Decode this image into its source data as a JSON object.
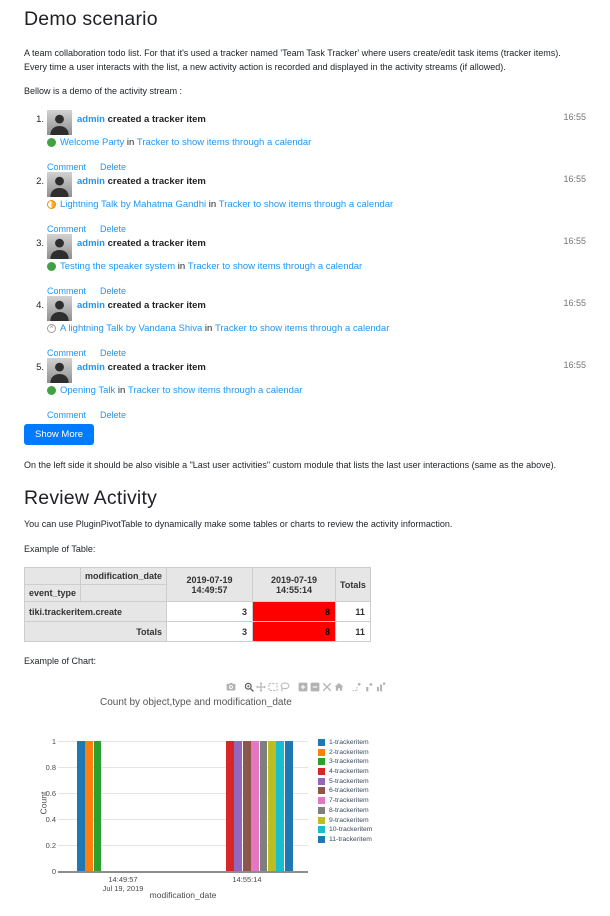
{
  "page": {
    "heading1": "Demo scenario",
    "intro": "A team collaboration todo list. For that it's used a tracker named 'Team Task Tracker' where users create/edit task items (tracker items). Every time a user interacts with the list, a new activity action is recorded and displayed in the activity streams (if allowed).",
    "stream_intro": "Bellow is a demo of the activity stream :",
    "show_more_label": "Show More",
    "module_note": "On the left side it should be also visible a \"Last user activities\" custom module that lists the last user interactions (same as the above).",
    "heading2": "Review Activity",
    "review_intro": "You can use PluginPivotTable to dynamically make some tables or charts to review the activity informaction.",
    "table_label": "Example of Table:",
    "chart_label": "Example of Chart:"
  },
  "activity_stream": {
    "in_label": "in",
    "comment_label": "Comment",
    "delete_label": "Delete",
    "items": [
      {
        "num": "1.",
        "user": "admin",
        "action": "created a tracker item",
        "time": "16:55",
        "status": "open",
        "title": "Welcome Party",
        "tracker": "Tracker to show items through a calendar"
      },
      {
        "num": "2.",
        "user": "admin",
        "action": "created a tracker item",
        "time": "16:55",
        "status": "pending",
        "title": "Lightning Talk by Mahatma Gandhi",
        "tracker": "Tracker to show items through a calendar"
      },
      {
        "num": "3.",
        "user": "admin",
        "action": "created a tracker item",
        "time": "16:55",
        "status": "open",
        "title": "Testing the speaker system",
        "tracker": "Tracker to show items through a calendar"
      },
      {
        "num": "4.",
        "user": "admin",
        "action": "created a tracker item",
        "time": "16:55",
        "status": "closed",
        "title": "A lightning Talk by Vandana Shiva",
        "tracker": "Tracker to show items through a calendar"
      },
      {
        "num": "5.",
        "user": "admin",
        "action": "created a tracker item",
        "time": "16:55",
        "status": "open",
        "title": "Opening Talk",
        "tracker": "Tracker to show items through a calendar"
      }
    ],
    "status_colors": {
      "open": "#43a047",
      "pending": "#ff9800",
      "closed": "#9e9e9e"
    }
  },
  "pivot_table": {
    "col_axis_label": "modification_date",
    "row_axis_label": "event_type",
    "col_headers": [
      "2019-07-19 14:49:57",
      "2019-07-19 14:55:14",
      "Totals"
    ],
    "rows": [
      {
        "label": "tiki.trackeritem.create",
        "values": [
          3,
          8,
          11
        ]
      },
      {
        "label": "Totals",
        "values": [
          3,
          8,
          11
        ]
      }
    ],
    "heat_color": "#ff0000"
  },
  "chart_toolbar": {
    "icons": [
      "camera-icon",
      "zoom-icon",
      "pan-icon",
      "box-select-icon",
      "lasso-select-icon",
      "zoom-in-icon",
      "zoom-out-icon",
      "autoscale-icon",
      "reset-axes-icon",
      "toggle-spikelines-icon",
      "hover-closest-icon",
      "hover-compare-icon"
    ]
  },
  "chart_data": {
    "type": "bar",
    "title": "Count by object,type and modification_date",
    "xlabel": "modification_date",
    "ylabel": "Count",
    "ylim": [
      0,
      1
    ],
    "yticks": [
      0,
      0.2,
      0.4,
      0.6,
      0.8,
      1
    ],
    "categories": [
      "2019-07-19 14:49:57",
      "2019-07-19 14:55:14"
    ],
    "x_tick_labels": [
      [
        "14:49:57",
        "Jul 19, 2019"
      ],
      [
        "14:55:14"
      ]
    ],
    "grid": true,
    "legend_position": "right",
    "series": [
      {
        "name": "1-trackeritem",
        "color": "#1f77b4",
        "values": [
          1,
          0
        ]
      },
      {
        "name": "2-trackeritem",
        "color": "#ff7f0e",
        "values": [
          1,
          0
        ]
      },
      {
        "name": "3-trackeritem",
        "color": "#2ca02c",
        "values": [
          1,
          0
        ]
      },
      {
        "name": "4-trackeritem",
        "color": "#d62728",
        "values": [
          0,
          1
        ]
      },
      {
        "name": "5-trackeritem",
        "color": "#9467bd",
        "values": [
          0,
          1
        ]
      },
      {
        "name": "6-trackeritem",
        "color": "#8c564b",
        "values": [
          0,
          1
        ]
      },
      {
        "name": "7-trackeritem",
        "color": "#e377c2",
        "values": [
          0,
          1
        ]
      },
      {
        "name": "8-trackeritem",
        "color": "#7f7f7f",
        "values": [
          0,
          1
        ]
      },
      {
        "name": "9-trackeritem",
        "color": "#bcbd22",
        "values": [
          0,
          1
        ]
      },
      {
        "name": "10-trackeritem",
        "color": "#17becf",
        "values": [
          0,
          1
        ]
      },
      {
        "name": "11-trackeritem",
        "color": "#1f77b4",
        "values": [
          0,
          1
        ]
      }
    ]
  },
  "colors": {
    "link": "#2196f3",
    "button": "#007bff",
    "timestamp": "#757575"
  }
}
